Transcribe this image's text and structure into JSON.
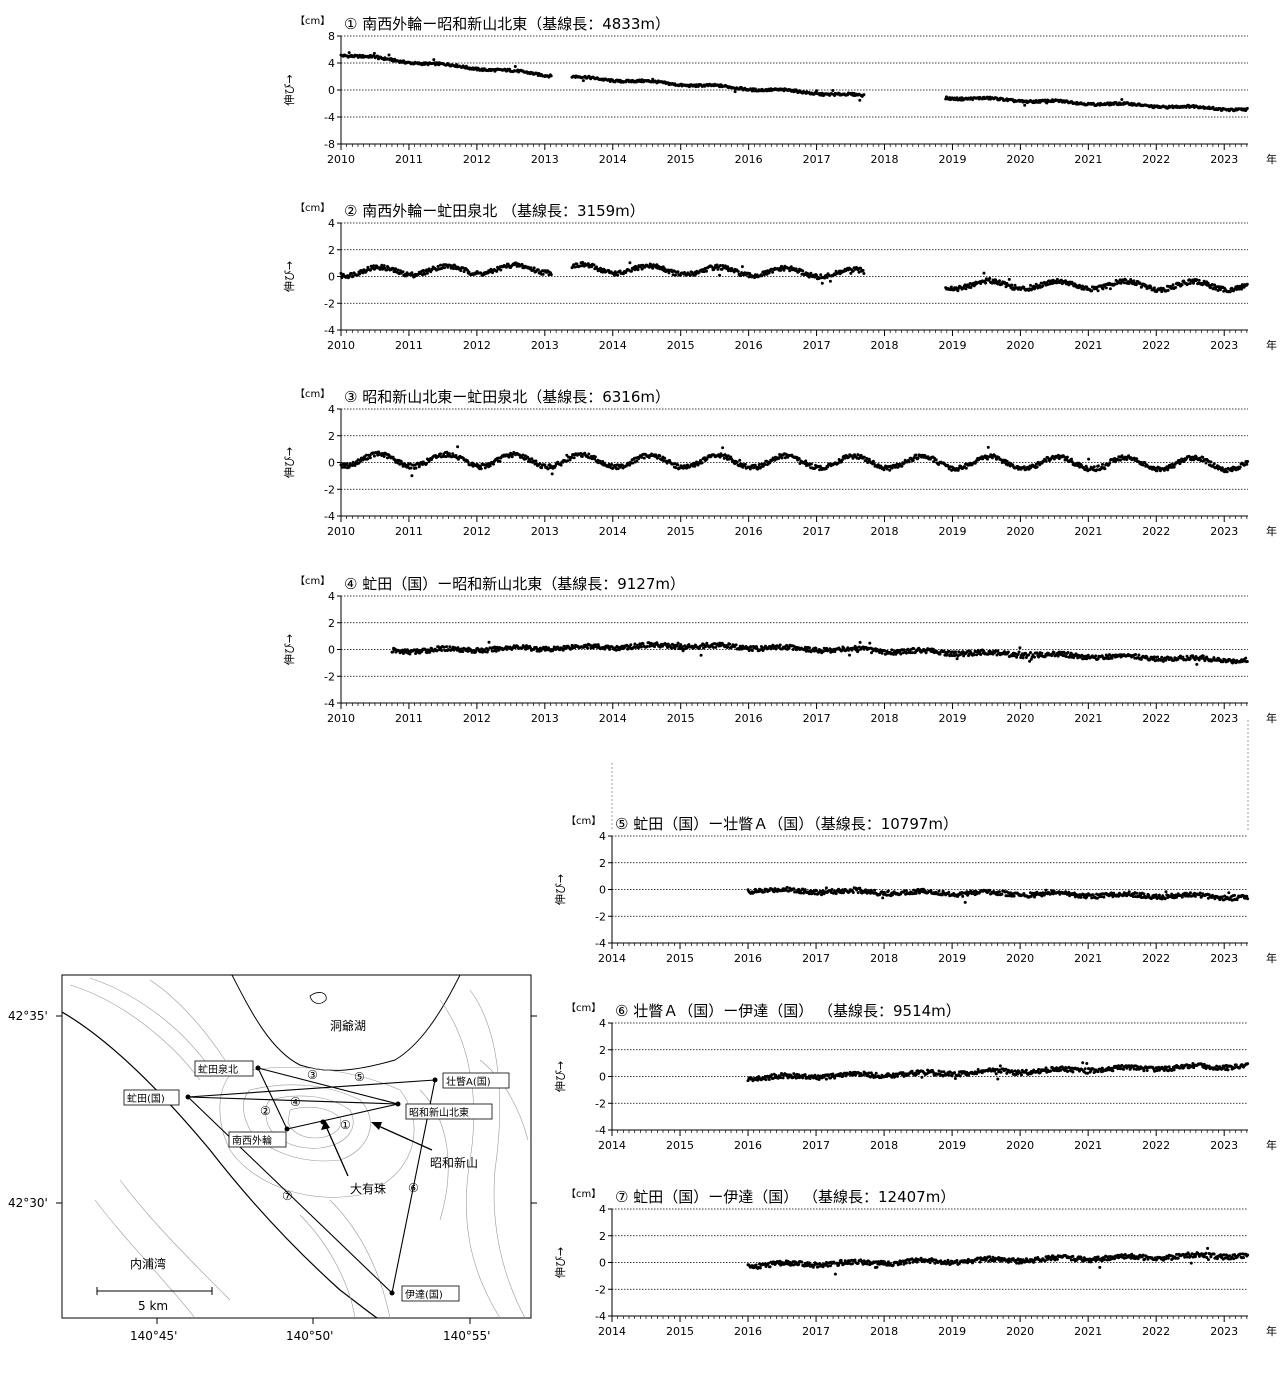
{
  "chart_data": [
    {
      "type": "scatter",
      "title": "① 南西外輪ー昭和新山北東（基線長：4833m）",
      "ylabel": "伸び→",
      "yunit": "【cm】",
      "xunit": "年",
      "xlim": [
        2010,
        2023.35
      ],
      "ylim": [
        -8,
        8
      ],
      "yticks": [
        "8",
        "4",
        "0",
        "-4",
        "-8"
      ],
      "xticks": [
        "2010",
        "2011",
        "2012",
        "2013",
        "2014",
        "2015",
        "2016",
        "2017",
        "2018",
        "2019",
        "2020",
        "2021",
        "2022",
        "2023"
      ],
      "segments": [
        {
          "t0": 2010.0,
          "t1": 2010.55,
          "v0": 5.2,
          "v1": 4.8,
          "amp": 0.1
        },
        {
          "t0": 2010.55,
          "t1": 2013.1,
          "v0": 4.6,
          "v1": 2.2,
          "amp": 0.15
        },
        {
          "t0": 2013.4,
          "t1": 2017.7,
          "v0": 1.9,
          "v1": -0.9,
          "amp": 0.15
        },
        {
          "t0": 2018.9,
          "t1": 2023.35,
          "v0": -1.1,
          "v1": -2.9,
          "amp": 0.15
        }
      ]
    },
    {
      "type": "scatter",
      "title": "② 南西外輪ー虻田泉北 （基線長：3159m）",
      "ylabel": "伸び→",
      "yunit": "【cm】",
      "xunit": "年",
      "xlim": [
        2010,
        2023.35
      ],
      "ylim": [
        -4,
        4
      ],
      "yticks": [
        "4",
        "2",
        "0",
        "-2",
        "-4"
      ],
      "xticks": [
        "2010",
        "2011",
        "2012",
        "2013",
        "2014",
        "2015",
        "2016",
        "2017",
        "2018",
        "2019",
        "2020",
        "2021",
        "2022",
        "2023"
      ],
      "segments": [
        {
          "t0": 2010.0,
          "t1": 2013.1,
          "v0": 0.35,
          "v1": 0.6,
          "amp": 0.3
        },
        {
          "t0": 2013.4,
          "t1": 2017.7,
          "v0": 0.6,
          "v1": 0.2,
          "amp": 0.3
        },
        {
          "t0": 2018.9,
          "t1": 2023.35,
          "v0": -0.6,
          "v1": -0.7,
          "amp": 0.3
        }
      ]
    },
    {
      "type": "scatter",
      "title": "③ 昭和新山北東ー虻田泉北（基線長：6316m）",
      "ylabel": "伸び→",
      "yunit": "【cm】",
      "xunit": "年",
      "xlim": [
        2010,
        2023.35
      ],
      "ylim": [
        -4,
        4
      ],
      "yticks": [
        "4",
        "2",
        "0",
        "-2",
        "-4"
      ],
      "xticks": [
        "2010",
        "2011",
        "2012",
        "2013",
        "2014",
        "2015",
        "2016",
        "2017",
        "2018",
        "2019",
        "2020",
        "2021",
        "2022",
        "2023"
      ],
      "segments": [
        {
          "t0": 2010.0,
          "t1": 2023.35,
          "v0": 0.2,
          "v1": -0.1,
          "amp": 0.45
        }
      ]
    },
    {
      "type": "scatter",
      "title": "④ 虻田（国）ー昭和新山北東（基線長：9127m）",
      "ylabel": "伸び→",
      "yunit": "【cm】",
      "xunit": "年",
      "xlim": [
        2010,
        2023.35
      ],
      "ylim": [
        -4,
        4
      ],
      "yticks": [
        "4",
        "2",
        "0",
        "-2",
        "-4"
      ],
      "xticks": [
        "2010",
        "2011",
        "2012",
        "2013",
        "2014",
        "2015",
        "2016",
        "2017",
        "2018",
        "2019",
        "2020",
        "2021",
        "2022",
        "2023"
      ],
      "segments": [
        {
          "t0": 2010.75,
          "t1": 2015.0,
          "v0": -0.1,
          "v1": 0.3,
          "amp": 0.1
        },
        {
          "t0": 2015.0,
          "t1": 2023.35,
          "v0": 0.3,
          "v1": -0.8,
          "amp": 0.1
        }
      ]
    },
    {
      "type": "scatter",
      "title": "⑤ 虻田（国）ー壮瞥Ａ（国）（基線長：10797m）",
      "ylabel": "伸び→",
      "yunit": "【cm】",
      "xunit": "年",
      "xlim": [
        2014,
        2023.35
      ],
      "ylim": [
        -4,
        4
      ],
      "yticks": [
        "4",
        "2",
        "0",
        "-2",
        "-4"
      ],
      "xticks": [
        "2014",
        "2015",
        "2016",
        "2017",
        "2018",
        "2019",
        "2020",
        "2021",
        "2022",
        "2023"
      ],
      "segments": [
        {
          "t0": 2016.0,
          "t1": 2023.35,
          "v0": -0.05,
          "v1": -0.55,
          "amp": 0.1
        }
      ]
    },
    {
      "type": "scatter",
      "title": "⑥ 壮瞥Ａ（国）ー伊達（国） （基線長：9514m）",
      "ylabel": "伸び→",
      "yunit": "【cm】",
      "xunit": "年",
      "xlim": [
        2014,
        2023.35
      ],
      "ylim": [
        -4,
        4
      ],
      "yticks": [
        "4",
        "2",
        "0",
        "-2",
        "-4"
      ],
      "xticks": [
        "2014",
        "2015",
        "2016",
        "2017",
        "2018",
        "2019",
        "2020",
        "2021",
        "2022",
        "2023"
      ],
      "segments": [
        {
          "t0": 2016.0,
          "t1": 2023.35,
          "v0": -0.1,
          "v1": 0.8,
          "amp": 0.1
        }
      ]
    },
    {
      "type": "scatter",
      "title": "⑦ 虻田（国）ー伊達（国） （基線長：12407m）",
      "ylabel": "伸び→",
      "yunit": "【cm】",
      "xunit": "年",
      "xlim": [
        2014,
        2023.35
      ],
      "ylim": [
        -4,
        4
      ],
      "yticks": [
        "4",
        "2",
        "0",
        "-2",
        "-4"
      ],
      "xticks": [
        "2014",
        "2015",
        "2016",
        "2017",
        "2018",
        "2019",
        "2020",
        "2021",
        "2022",
        "2023"
      ],
      "segments": [
        {
          "t0": 2016.0,
          "t1": 2023.35,
          "v0": -0.2,
          "v1": 0.55,
          "amp": 0.1
        }
      ]
    }
  ],
  "map": {
    "lat_labels": [
      "42°35'",
      "42°30'"
    ],
    "lon_labels": [
      "140°45'",
      "140°50'",
      "140°55'"
    ],
    "places": [
      "洞爺湖",
      "内浦湾",
      "昭和新山",
      "大有珠"
    ],
    "stations": [
      "虻田泉北",
      "虻田(国)",
      "南西外輪",
      "昭和新山北東",
      "壮瞥A(国)",
      "伊達(国)"
    ],
    "baselines": [
      "①",
      "②",
      "③",
      "④",
      "⑤",
      "⑥",
      "⑦"
    ],
    "scale": "5 km"
  }
}
